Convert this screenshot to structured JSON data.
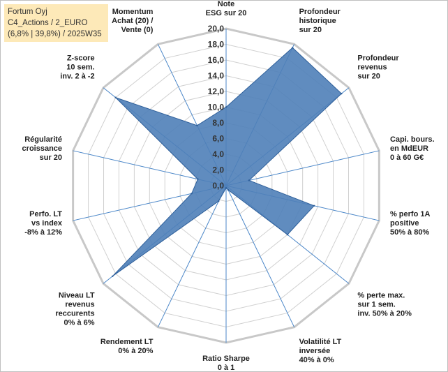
{
  "title_box": {
    "line1": "Fortum Oyj",
    "line2": "C4_Actions / 2_EURO",
    "line3": "(6,8% | 39,8%) / 2025W35"
  },
  "colors": {
    "fill": "#4f7fb8",
    "stroke": "#2e5f9a",
    "grid": "#d0d0d0",
    "outer_ring": "#c8c8c8",
    "spoke": "#4a86c8",
    "title_bg": "#fde9b8"
  },
  "chart_data": {
    "type": "radar",
    "rmin": 0,
    "rmax": 20,
    "tick_step": 2,
    "grid": true,
    "tick_labels": [
      "0,0",
      "2,0",
      "4,0",
      "6,0",
      "8,0",
      "10,0",
      "12,0",
      "14,0",
      "16,0",
      "18,0",
      "20,0"
    ],
    "categories": [
      [
        "Note",
        "ESG sur 20"
      ],
      [
        "Profondeur",
        "historique",
        "sur 20"
      ],
      [
        "Profondeur",
        "revenus",
        "sur 20"
      ],
      [
        "Capi. bours.",
        "en MdEUR",
        "0 à 60 G€"
      ],
      [
        "% perfo 1A",
        "positive",
        "50% à 80%"
      ],
      [
        "% perte max.",
        "sur 1 sem.",
        "inv. 50% à 20%"
      ],
      [
        "Volatilité LT",
        "inversée",
        "40% à 0%"
      ],
      [
        "Ratio Sharpe",
        "0 à 1"
      ],
      [
        "Rendement LT",
        "0% à 20%"
      ],
      [
        "Niveau LT",
        "revenus",
        "reccurents",
        "0% à 6%"
      ],
      [
        "Perfo. LT",
        "vs index",
        "-8% à 12%"
      ],
      [
        "Régularité",
        "croissance",
        "sur 20"
      ],
      [
        "Z-score",
        "10 sem.",
        "inv. 2 à -2"
      ],
      [
        "Momentum",
        "Achat (20) /",
        "Vente (0)"
      ]
    ],
    "values": [
      10.0,
      19.5,
      18.8,
      3.0,
      11.5,
      10.0,
      0.6,
      0.3,
      2.2,
      18.5,
      4.5,
      3.7,
      18.0,
      8.5
    ]
  }
}
